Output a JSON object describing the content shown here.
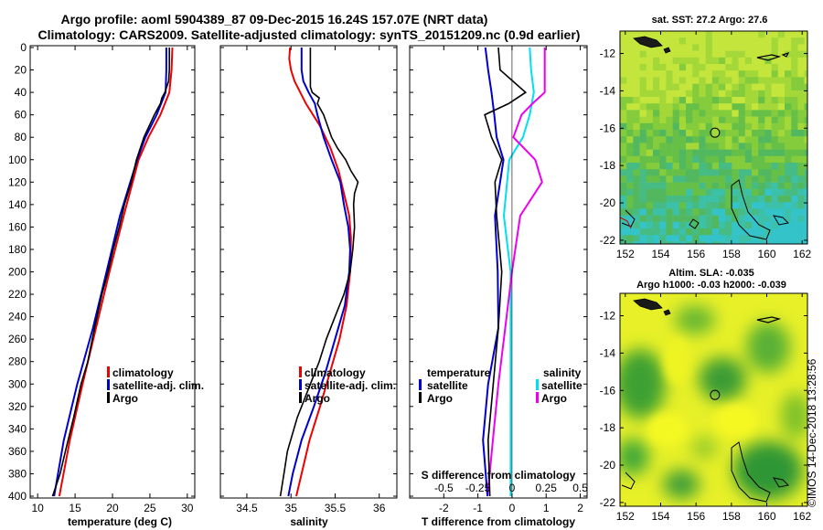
{
  "header": {
    "title_line1": "Argo profile: aoml 5904389_87 09-Dec-2015 16.24S 157.07E (NRT data)",
    "title_line2": "Climatology: CARS2009. Satellite-adjusted climatology: synTS_20151209.nc (0.9d earlier)"
  },
  "colors": {
    "climatology": "#ee0000",
    "satellite": "#0000cc",
    "argo": "#000000",
    "sal_satellite": "#00e0ee",
    "sal_argo": "#ee00ee"
  },
  "legend": {
    "climatology": "climatology",
    "satellite_adj": "satellite-adj. clim.",
    "argo": "Argo",
    "temperature_heading": "temperature",
    "salinity_heading": "salinity",
    "satellite": "satellite",
    "argo_short": "Argo"
  },
  "depth_axis": {
    "ticks": [
      "0",
      "20",
      "40",
      "60",
      "80",
      "100",
      "120",
      "140",
      "160",
      "180",
      "200",
      "220",
      "240",
      "260",
      "280",
      "300",
      "320",
      "340",
      "360",
      "380",
      "400"
    ]
  },
  "chart_data": [
    {
      "type": "line",
      "name": "temperature",
      "xlabel": "temperature (deg C)",
      "xlim": [
        9,
        31
      ],
      "ylim": [
        400,
        0
      ],
      "xticks": [
        "10",
        "15",
        "20",
        "25",
        "30"
      ],
      "series": [
        {
          "name": "climatology",
          "depth": [
            0,
            20,
            40,
            60,
            80,
            100,
            150,
            200,
            250,
            300,
            350,
            400
          ],
          "values": [
            28.0,
            27.9,
            27.6,
            26.4,
            24.8,
            23.5,
            21.5,
            19.6,
            17.8,
            16.0,
            14.3,
            12.9
          ]
        },
        {
          "name": "satellite-adj. clim.",
          "depth": [
            0,
            20,
            40,
            50,
            60,
            80,
            100,
            150,
            200,
            250,
            300,
            350,
            400
          ],
          "values": [
            27.2,
            27.2,
            27.1,
            26.5,
            25.9,
            24.4,
            23.3,
            21.0,
            19.2,
            17.4,
            15.3,
            13.5,
            12.2
          ]
        },
        {
          "name": "Argo",
          "depth": [
            0,
            20,
            30,
            40,
            45,
            50,
            60,
            80,
            100,
            120,
            140,
            160,
            180,
            200,
            220,
            250,
            280,
            300,
            330,
            360,
            380,
            400
          ],
          "values": [
            27.6,
            27.6,
            27.5,
            27.0,
            26.6,
            26.4,
            25.6,
            24.2,
            23.2,
            22.5,
            21.6,
            20.9,
            20.1,
            19.4,
            18.6,
            17.6,
            16.7,
            15.8,
            14.8,
            13.7,
            13.0,
            12.0
          ]
        }
      ]
    },
    {
      "type": "line",
      "name": "salinity",
      "xlabel": "salinity",
      "xlim": [
        34.2,
        36.2
      ],
      "ylim": [
        400,
        0
      ],
      "xticks": [
        "34.5",
        "35",
        "35.5",
        "36"
      ],
      "series": [
        {
          "name": "climatology",
          "depth": [
            0,
            10,
            20,
            30,
            50,
            70,
            90,
            110,
            130,
            150,
            170,
            200,
            230,
            260,
            290,
            320,
            350,
            380,
            400
          ],
          "values": [
            34.99,
            34.98,
            35.0,
            35.04,
            35.17,
            35.33,
            35.45,
            35.54,
            35.6,
            35.66,
            35.68,
            35.67,
            35.63,
            35.55,
            35.44,
            35.33,
            35.21,
            35.12,
            35.06
          ]
        },
        {
          "name": "satellite-adj. clim.",
          "depth": [
            0,
            10,
            20,
            30,
            40,
            50,
            60,
            80,
            100,
            120,
            140,
            160,
            180,
            200,
            230,
            260,
            290,
            320,
            350,
            380,
            400
          ],
          "values": [
            35.12,
            35.12,
            35.12,
            35.14,
            35.2,
            35.27,
            35.3,
            35.37,
            35.46,
            35.56,
            35.6,
            35.65,
            35.67,
            35.66,
            35.61,
            35.5,
            35.39,
            35.26,
            35.12,
            35.02,
            34.97
          ]
        },
        {
          "name": "Argo",
          "depth": [
            0,
            20,
            35,
            40,
            45,
            50,
            60,
            80,
            90,
            100,
            110,
            120,
            130,
            140,
            160,
            180,
            200,
            220,
            240,
            260,
            280,
            300,
            330,
            360,
            380,
            400
          ],
          "values": [
            35.22,
            35.22,
            35.22,
            35.24,
            35.32,
            35.3,
            35.37,
            35.46,
            35.53,
            35.62,
            35.68,
            35.76,
            35.72,
            35.71,
            35.72,
            35.7,
            35.67,
            35.6,
            35.5,
            35.4,
            35.32,
            35.22,
            35.07,
            34.96,
            34.92,
            34.88
          ]
        }
      ]
    },
    {
      "type": "line",
      "name": "difference",
      "xlabel": "T difference from climatology",
      "top_xlabel": "S difference from climatology",
      "xlim": [
        -3,
        2.2
      ],
      "ylim": [
        400,
        0
      ],
      "xticks": [
        "-2",
        "-1",
        "0",
        "1",
        "2"
      ],
      "top_xticks": [
        "-0.5",
        "-0.25",
        "0",
        "0.25",
        "0.5"
      ],
      "series": [
        {
          "name": "temperature satellite",
          "depth": [
            0,
            20,
            40,
            60,
            80,
            100,
            150,
            200,
            250,
            300,
            350,
            400
          ],
          "values": [
            -0.78,
            -0.7,
            -0.6,
            -0.52,
            -0.45,
            -0.25,
            -0.5,
            -0.42,
            -0.4,
            -0.7,
            -0.85,
            -0.72
          ]
        },
        {
          "name": "temperature Argo",
          "depth": [
            0,
            20,
            40,
            50,
            60,
            80,
            100,
            120,
            150,
            200,
            250,
            300,
            350,
            400
          ],
          "values": [
            -0.4,
            -0.35,
            0.4,
            -0.1,
            -0.8,
            -0.6,
            -0.3,
            -0.5,
            -0.45,
            -0.3,
            -0.4,
            -0.55,
            -0.7,
            -0.65
          ]
        },
        {
          "name": "salinity satellite",
          "depth": [
            0,
            20,
            40,
            60,
            80,
            100,
            150,
            200,
            250,
            300,
            350,
            400
          ],
          "values": [
            0.13,
            0.14,
            0.16,
            0.13,
            0.08,
            -0.02,
            -0.06,
            -0.01,
            -0.01,
            -0.01,
            -0.01,
            -0.01
          ]
        },
        {
          "name": "salinity Argo",
          "depth": [
            0,
            20,
            40,
            50,
            60,
            80,
            100,
            120,
            150,
            200,
            250,
            300,
            350,
            400
          ],
          "values": [
            0.24,
            0.24,
            0.24,
            0.15,
            0.07,
            0.01,
            0.17,
            0.22,
            0.06,
            0.0,
            -0.05,
            -0.1,
            -0.14,
            -0.18
          ]
        }
      ]
    },
    {
      "type": "heatmap",
      "name": "sst-map",
      "title": "sat. SST: 27.2  Argo: 27.6",
      "xlim": [
        151.7,
        162.3
      ],
      "ylim": [
        -22.2,
        -10.8
      ],
      "xticks": [
        "152",
        "154",
        "156",
        "158",
        "160",
        "162"
      ],
      "yticks": [
        "-12",
        "-14",
        "-16",
        "-18",
        "-20",
        "-22"
      ],
      "profile_location": {
        "lon": 157.07,
        "lat": -16.24
      }
    },
    {
      "type": "heatmap",
      "name": "sla-map",
      "title_line1": "Altim. SLA: -0.035",
      "title_line2": "Argo h1000: -0.03  h2000: -0.039",
      "xlim": [
        151.7,
        162.3
      ],
      "ylim": [
        -22.2,
        -10.8
      ],
      "xticks": [
        "152",
        "154",
        "156",
        "158",
        "160",
        "162"
      ],
      "yticks": [
        "-12",
        "-14",
        "-16",
        "-18",
        "-20",
        "-22"
      ],
      "profile_location": {
        "lon": 157.07,
        "lat": -16.24
      }
    }
  ],
  "footer": {
    "stamp": "©IMOS 14-Dec-2018 13:28:56"
  }
}
